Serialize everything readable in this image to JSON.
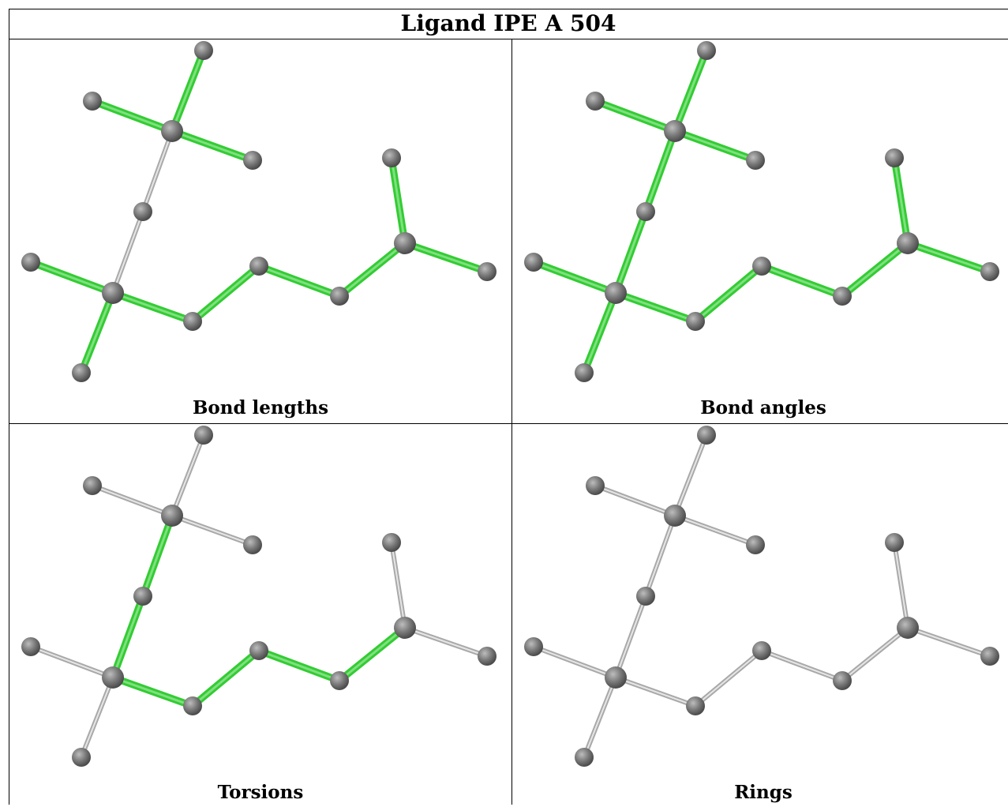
{
  "ligand": {
    "title": "Ligand IPE A 504"
  },
  "colors": {
    "highlight_bond": "#33cc33",
    "plain_bond": "#c8c8c8",
    "atom": "#7a7a7a"
  },
  "panels": [
    {
      "caption": "Bond lengths",
      "highlighted_bonds": [
        0,
        1,
        2,
        3,
        4,
        5,
        6,
        7,
        8,
        9,
        10,
        11
      ]
    },
    {
      "caption": "Bond angles",
      "highlighted_bonds": [
        0,
        1,
        2,
        3,
        4,
        5,
        6,
        7,
        8,
        9,
        10,
        11,
        12,
        13
      ]
    },
    {
      "caption": "Torsions",
      "highlighted_bonds": [
        5,
        6,
        7,
        8,
        12,
        13
      ]
    },
    {
      "caption": "Rings",
      "highlighted_bonds": []
    }
  ]
}
